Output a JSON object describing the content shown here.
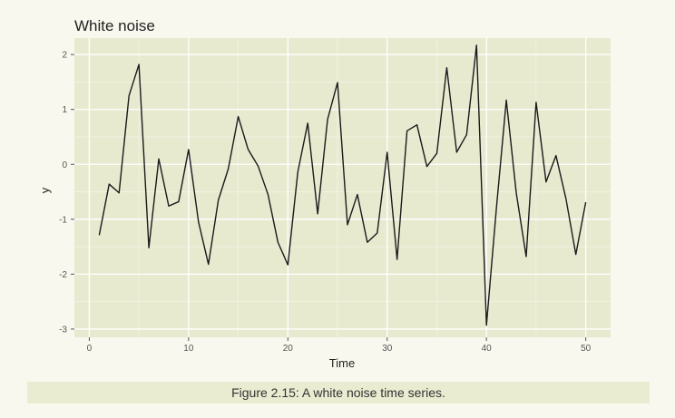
{
  "chart_data": {
    "type": "line",
    "title": "White noise",
    "xlabel": "Time",
    "ylabel": "y",
    "xlim": [
      -1.5,
      52.5
    ],
    "ylim": [
      -3.15,
      2.3
    ],
    "xticks": [
      0,
      10,
      20,
      30,
      40,
      50
    ],
    "yticks": [
      -3,
      -2,
      -1,
      0,
      1,
      2
    ],
    "grid": true,
    "colors": {
      "panel": "#e8ead0",
      "grid_major": "#ffffff",
      "grid_minor": "#f2f3e3",
      "line": "#1a1a1a"
    },
    "x": [
      1,
      2,
      3,
      4,
      5,
      6,
      7,
      8,
      9,
      10,
      11,
      12,
      13,
      14,
      15,
      16,
      17,
      18,
      19,
      20,
      21,
      22,
      23,
      24,
      25,
      26,
      27,
      28,
      29,
      30,
      31,
      32,
      33,
      34,
      35,
      36,
      37,
      38,
      39,
      40,
      41,
      42,
      43,
      44,
      45,
      46,
      47,
      48,
      49,
      50
    ],
    "y": [
      -1.29,
      -0.36,
      -0.52,
      1.25,
      1.82,
      -1.52,
      0.1,
      -0.76,
      -0.68,
      0.27,
      -1.05,
      -1.82,
      -0.65,
      -0.08,
      0.87,
      0.27,
      -0.03,
      -0.55,
      -1.42,
      -1.83,
      -0.14,
      0.75,
      -0.9,
      0.82,
      1.49,
      -1.1,
      -0.55,
      -1.42,
      -1.25,
      0.22,
      -1.73,
      0.61,
      0.72,
      -0.04,
      0.2,
      1.76,
      0.22,
      0.54,
      2.17,
      -2.93,
      -0.8,
      1.17,
      -0.52,
      -1.68,
      1.13,
      -0.32,
      0.16,
      -0.62,
      -1.64,
      -0.69
    ]
  },
  "caption": "Figure 2.15: A white noise time series."
}
